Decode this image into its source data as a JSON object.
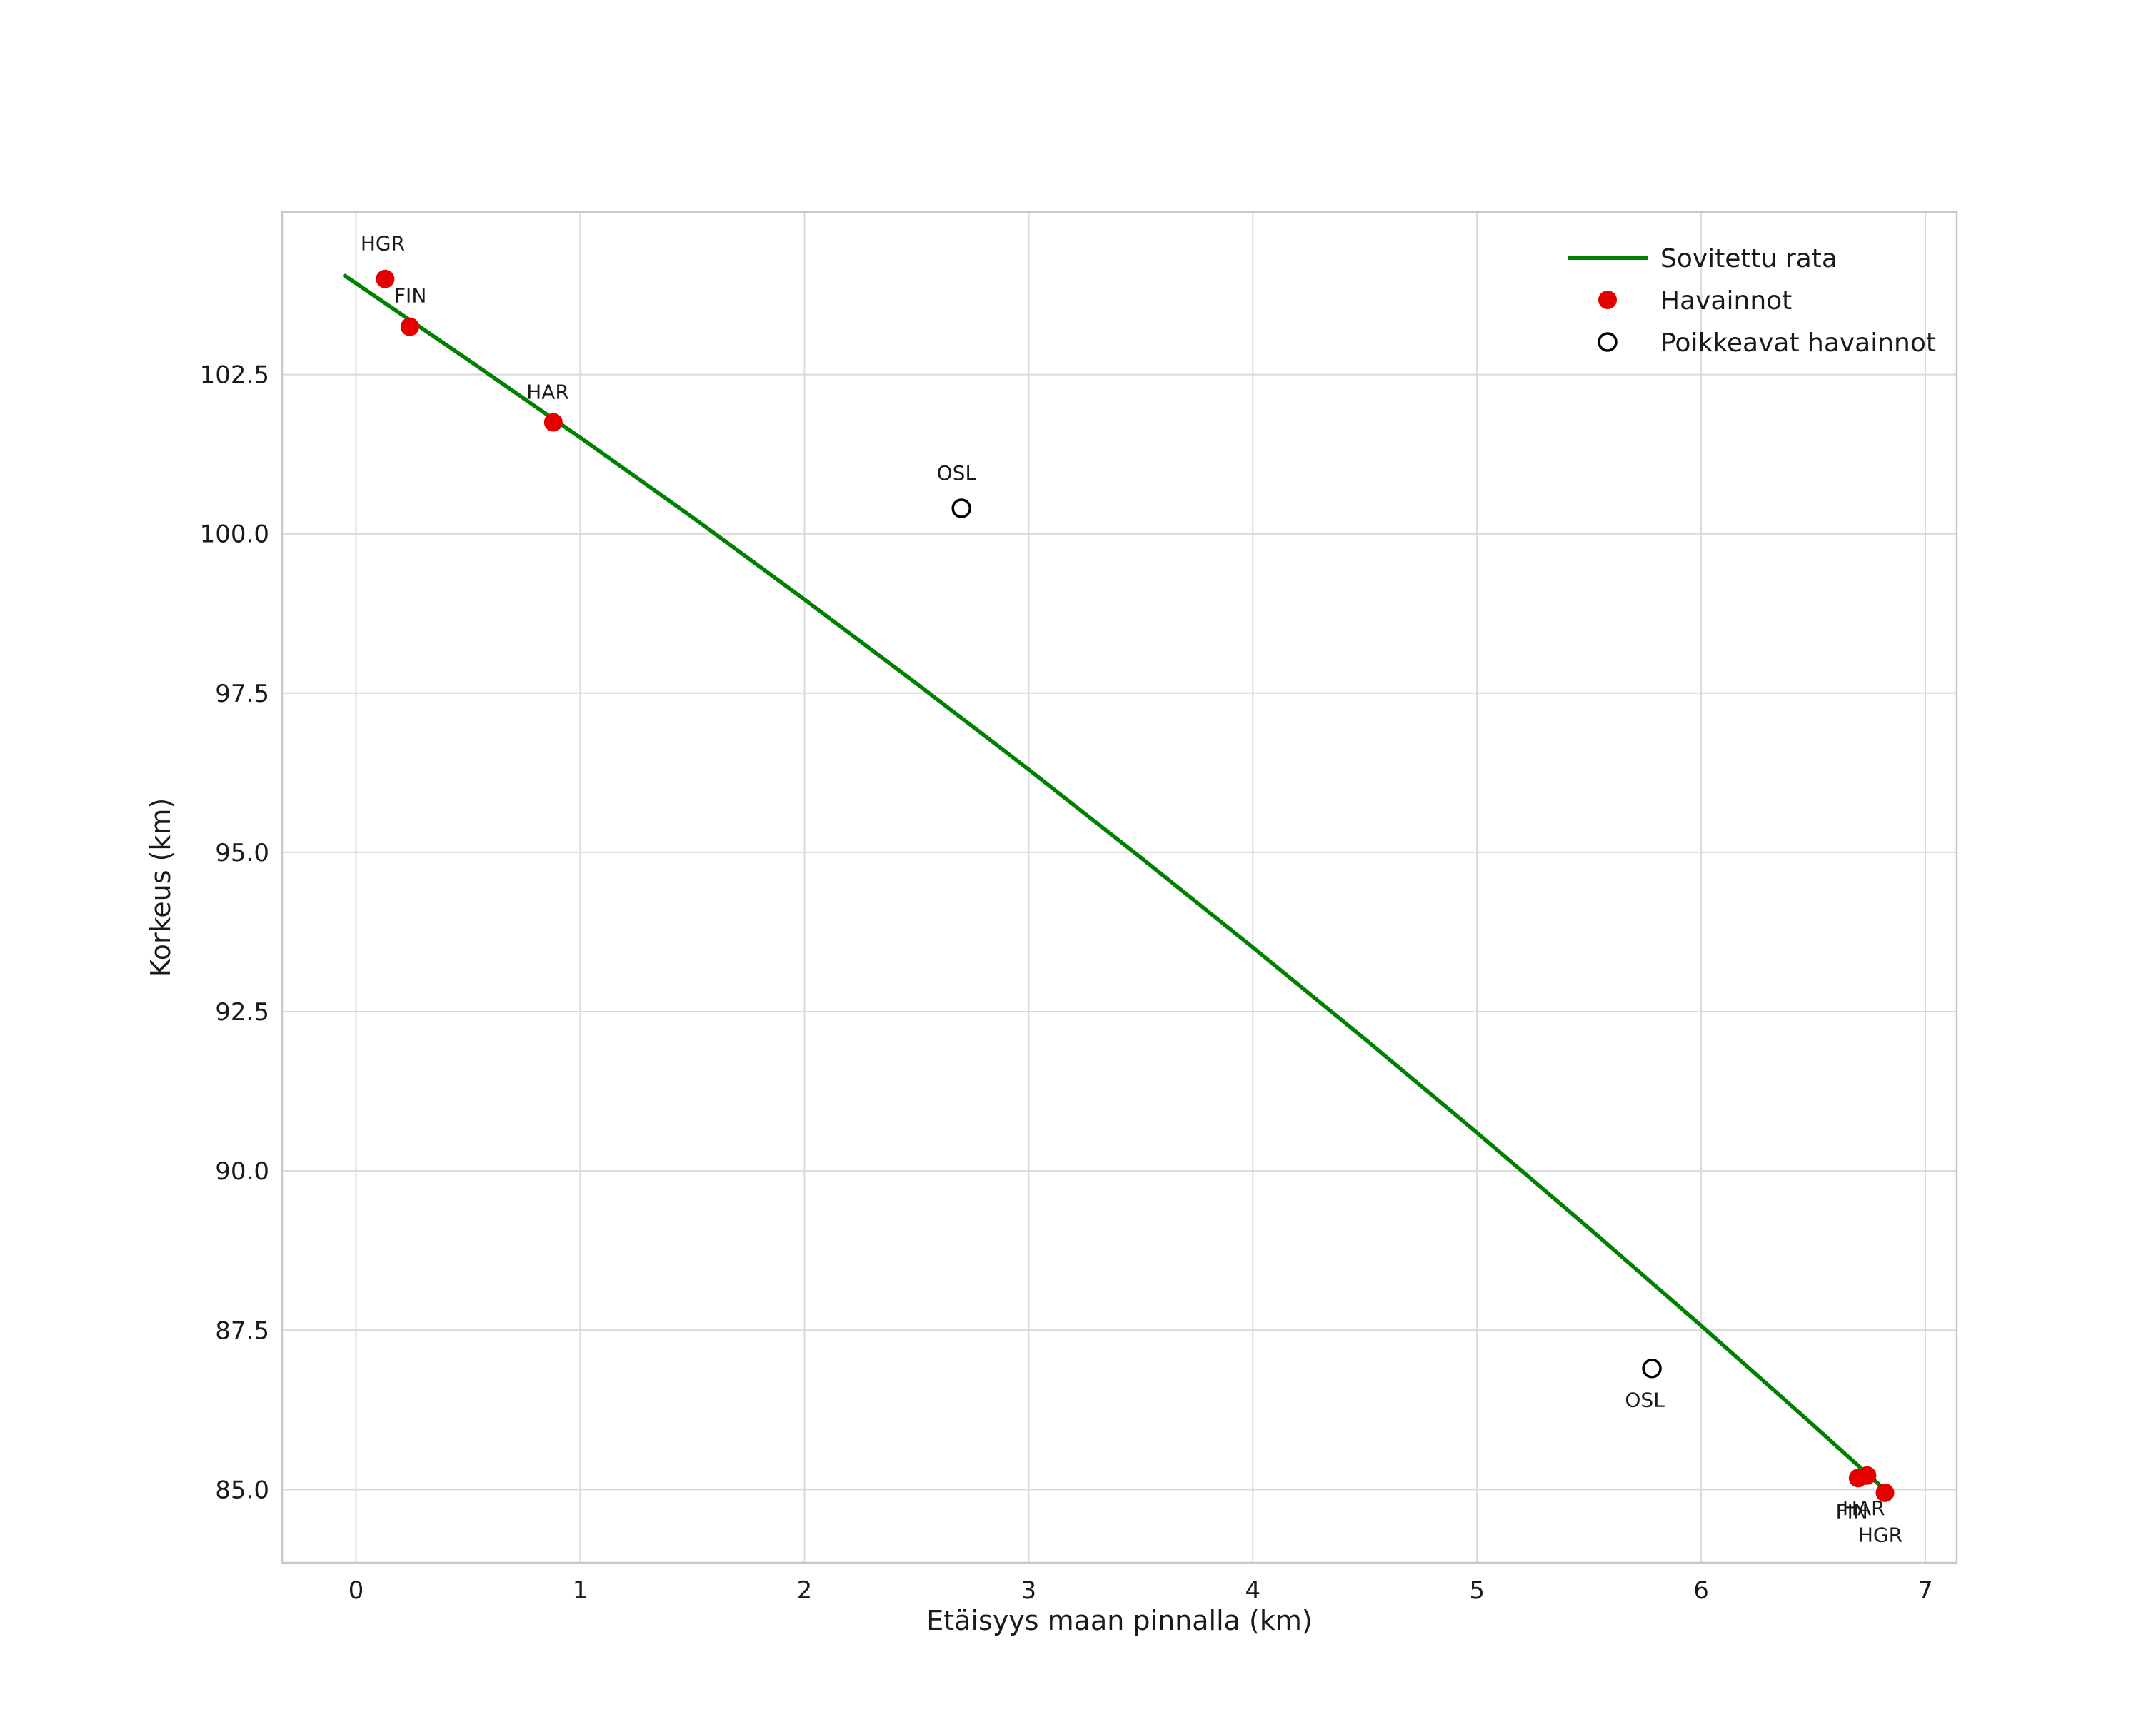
{
  "figure": {
    "background": "#ffffff"
  },
  "chart_data": {
    "type": "scatter",
    "title": "",
    "xlabel": "Etäisyys maan pinnalla (km)",
    "ylabel": "Korkeus (km)",
    "xlim": [
      -0.33,
      7.14
    ],
    "ylim": [
      83.85,
      105.05
    ],
    "grid": true,
    "x_ticks": [
      {
        "value": 0,
        "label": "0"
      },
      {
        "value": 1,
        "label": "1"
      },
      {
        "value": 2,
        "label": "2"
      },
      {
        "value": 3,
        "label": "3"
      },
      {
        "value": 4,
        "label": "4"
      },
      {
        "value": 5,
        "label": "5"
      },
      {
        "value": 6,
        "label": "6"
      },
      {
        "value": 7,
        "label": "7"
      }
    ],
    "y_ticks": [
      {
        "value": 85.0,
        "label": "85.0"
      },
      {
        "value": 87.5,
        "label": "87.5"
      },
      {
        "value": 90.0,
        "label": "90.0"
      },
      {
        "value": 92.5,
        "label": "92.5"
      },
      {
        "value": 95.0,
        "label": "95.0"
      },
      {
        "value": 97.5,
        "label": "97.5"
      },
      {
        "value": 100.0,
        "label": "100.0"
      },
      {
        "value": 102.5,
        "label": "102.5"
      }
    ],
    "colors": {
      "line": "#008000",
      "observation": "#e50000",
      "outlier_stroke": "#000000",
      "outlier_fill": "#ffffff",
      "grid": "#d9d9d9",
      "border": "#c8c8c8",
      "text": "#1a1a1a"
    },
    "series": [
      {
        "name": "Sovitettu rata",
        "type": "line",
        "color": "#008000",
        "points": [
          [
            -0.05,
            104.05
          ],
          [
            0.5,
            102.73
          ],
          [
            1.0,
            101.51
          ],
          [
            1.5,
            100.26
          ],
          [
            2.0,
            98.97
          ],
          [
            2.5,
            97.65
          ],
          [
            3.0,
            96.3
          ],
          [
            3.5,
            94.92
          ],
          [
            4.0,
            93.51
          ],
          [
            4.5,
            92.07
          ],
          [
            5.0,
            90.6
          ],
          [
            5.5,
            89.1
          ],
          [
            6.0,
            87.57
          ],
          [
            6.5,
            86.01
          ],
          [
            6.85,
            84.9
          ]
        ]
      },
      {
        "name": "Havainnot",
        "type": "scatter",
        "color": "#e50000",
        "points": [
          {
            "label": "HGR",
            "x": 0.13,
            "y": 104.0,
            "label_x": 0.02,
            "label_y": 104.45
          },
          {
            "label": "FIN",
            "x": 0.24,
            "y": 103.25,
            "label_x": 0.17,
            "label_y": 103.63
          },
          {
            "label": "HAR",
            "x": 0.88,
            "y": 101.75,
            "label_x": 0.76,
            "label_y": 102.12
          },
          {
            "label": "HAR",
            "x": 6.7,
            "y": 85.18,
            "label_x": 6.63,
            "label_y": 84.6
          },
          {
            "label": "FIN",
            "x": 6.74,
            "y": 85.22,
            "label_x": 6.6,
            "label_y": 84.55
          },
          {
            "label": "HGR",
            "x": 6.82,
            "y": 84.95,
            "label_x": 6.7,
            "label_y": 84.18
          }
        ]
      },
      {
        "name": "Poikkeavat havainnot",
        "type": "scatter-open",
        "color": "#000000",
        "points": [
          {
            "label": "OSL",
            "x": 2.7,
            "y": 100.4,
            "label_x": 2.59,
            "label_y": 100.85
          },
          {
            "label": "OSL",
            "x": 5.78,
            "y": 86.9,
            "label_x": 5.66,
            "label_y": 86.3
          }
        ]
      }
    ],
    "legend": {
      "position": "top-right",
      "entries": [
        {
          "label": "Sovitettu rata",
          "marker": "line"
        },
        {
          "label": "Havainnot",
          "marker": "dot"
        },
        {
          "label": "Poikkeavat havainnot",
          "marker": "open-dot"
        }
      ]
    }
  }
}
